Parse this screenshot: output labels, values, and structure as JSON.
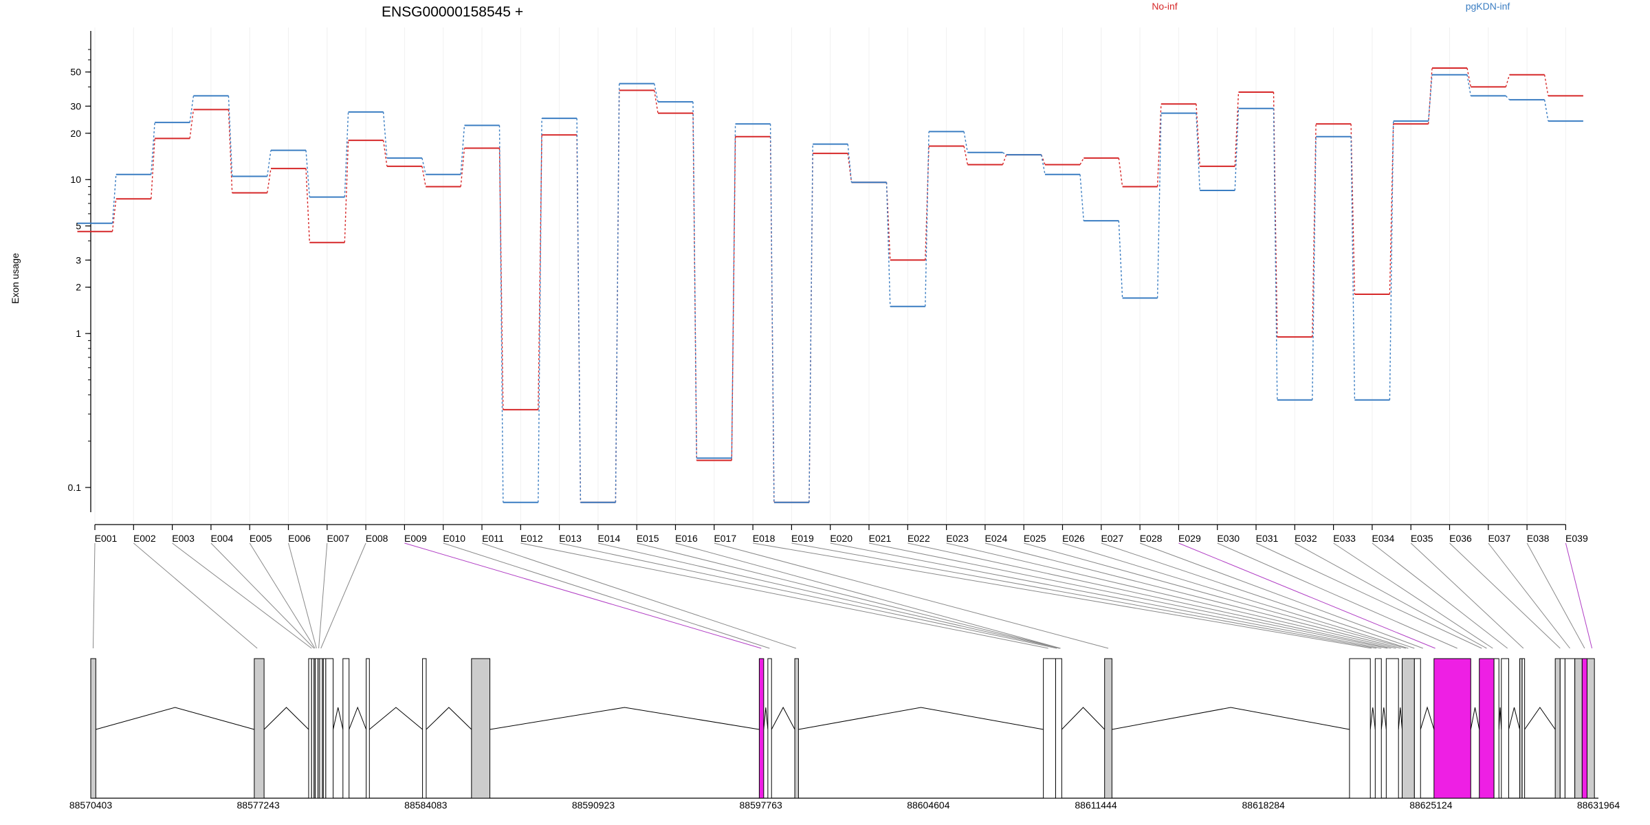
{
  "chart_data": {
    "type": "line",
    "title": "ENSG00000158545 +",
    "ylabel": "Exon usage",
    "y_scale": "log",
    "ylim": [
      0.075,
      70
    ],
    "y_ticks": [
      "0.1",
      "1",
      "2",
      "3",
      "5",
      "10",
      "20",
      "30",
      "50"
    ],
    "y_tick_values": [
      0.1,
      1,
      2,
      3,
      5,
      10,
      20,
      30,
      50
    ],
    "categories": [
      "E001",
      "E002",
      "E003",
      "E004",
      "E005",
      "E006",
      "E007",
      "E008",
      "E009",
      "E010",
      "E011",
      "E012",
      "E013",
      "E014",
      "E015",
      "E016",
      "E017",
      "E018",
      "E019",
      "E020",
      "E021",
      "E022",
      "E023",
      "E024",
      "E025",
      "E026",
      "E027",
      "E028",
      "E029",
      "E030",
      "E031",
      "E032",
      "E033",
      "E034",
      "E035",
      "E036",
      "E037",
      "E038",
      "E039"
    ],
    "legend_position": "top",
    "series": [
      {
        "name": "No-inf",
        "color": "#d62728",
        "values": [
          4.6,
          7.5,
          18.5,
          28.5,
          8.2,
          11.8,
          3.9,
          18.0,
          12.2,
          9.0,
          16.0,
          0.32,
          19.5,
          0.08,
          38.0,
          27.0,
          0.15,
          19.0,
          0.08,
          14.8,
          9.6,
          3.0,
          16.5,
          12.5,
          14.5,
          12.5,
          13.8,
          9.0,
          31.0,
          12.2,
          37.0,
          0.95,
          23.0,
          1.8,
          23.0,
          53.0,
          40.0,
          48.0,
          35.0
        ]
      },
      {
        "name": "pgKDN-inf",
        "color": "#3a7dc2",
        "values": [
          5.2,
          10.8,
          23.5,
          35.0,
          10.5,
          15.5,
          7.7,
          27.5,
          13.8,
          10.8,
          22.5,
          0.08,
          25.0,
          0.08,
          42.0,
          32.0,
          0.155,
          23.0,
          0.08,
          17.0,
          9.6,
          1.5,
          20.5,
          15.0,
          14.5,
          10.8,
          5.4,
          1.7,
          27.0,
          8.5,
          29.0,
          0.37,
          19.0,
          0.37,
          24.0,
          48.0,
          35.0,
          33.0,
          24.0
        ]
      }
    ],
    "gene_track": {
      "coordinate_labels": [
        "88570403",
        "88577243",
        "88584083",
        "88590923",
        "88597763",
        "88604604",
        "88611444",
        "88618284",
        "88625124",
        "88631964"
      ],
      "coordinate_values": [
        88570403,
        88577243,
        88584083,
        88590923,
        88597763,
        88604604,
        88611444,
        88618284,
        88625124,
        88631964
      ],
      "colors": {
        "exon": "#cccccc",
        "highlight": "#ee1fe4",
        "empty": "#ffffff"
      },
      "exons": [
        {
          "start": 88570403,
          "end": 88570610,
          "fill": "exon"
        },
        {
          "start": 88577080,
          "end": 88577480,
          "fill": "exon"
        },
        {
          "start": 88579300,
          "end": 88579420,
          "fill": "empty"
        },
        {
          "start": 88579420,
          "end": 88579520,
          "fill": "empty"
        },
        {
          "start": 88579520,
          "end": 88579570,
          "fill": "exon"
        },
        {
          "start": 88579570,
          "end": 88579680,
          "fill": "empty"
        },
        {
          "start": 88579680,
          "end": 88579750,
          "fill": "exon"
        },
        {
          "start": 88579750,
          "end": 88579860,
          "fill": "empty"
        },
        {
          "start": 88579860,
          "end": 88579900,
          "fill": "empty"
        },
        {
          "start": 88579900,
          "end": 88580000,
          "fill": "empty"
        },
        {
          "start": 88580000,
          "end": 88580300,
          "fill": "empty"
        },
        {
          "start": 88580700,
          "end": 88580950,
          "fill": "empty"
        },
        {
          "start": 88581650,
          "end": 88581780,
          "fill": "empty"
        },
        {
          "start": 88583950,
          "end": 88584100,
          "fill": "empty"
        },
        {
          "start": 88585950,
          "end": 88586700,
          "fill": "exon"
        },
        {
          "start": 88597700,
          "end": 88597880,
          "fill": "highlight"
        },
        {
          "start": 88598050,
          "end": 88598200,
          "fill": "empty"
        },
        {
          "start": 88599150,
          "end": 88599300,
          "fill": "exon"
        },
        {
          "start": 88609300,
          "end": 88609800,
          "fill": "empty"
        },
        {
          "start": 88609800,
          "end": 88610050,
          "fill": "empty"
        },
        {
          "start": 88611800,
          "end": 88612100,
          "fill": "exon"
        },
        {
          "start": 88621800,
          "end": 88622650,
          "fill": "empty"
        },
        {
          "start": 88622850,
          "end": 88623100,
          "fill": "empty"
        },
        {
          "start": 88623300,
          "end": 88623800,
          "fill": "empty"
        },
        {
          "start": 88623950,
          "end": 88624450,
          "fill": "exon"
        },
        {
          "start": 88624450,
          "end": 88624700,
          "fill": "empty"
        },
        {
          "start": 88625250,
          "end": 88626750,
          "fill": "highlight"
        },
        {
          "start": 88627100,
          "end": 88627700,
          "fill": "highlight"
        },
        {
          "start": 88627700,
          "end": 88627900,
          "fill": "empty"
        },
        {
          "start": 88628000,
          "end": 88628300,
          "fill": "empty"
        },
        {
          "start": 88628750,
          "end": 88628850,
          "fill": "exon"
        },
        {
          "start": 88628850,
          "end": 88628950,
          "fill": "empty"
        },
        {
          "start": 88630200,
          "end": 88630400,
          "fill": "exon"
        },
        {
          "start": 88630400,
          "end": 88630600,
          "fill": "empty"
        },
        {
          "start": 88630600,
          "end": 88631000,
          "fill": "empty"
        },
        {
          "start": 88631000,
          "end": 88631300,
          "fill": "exon"
        },
        {
          "start": 88631300,
          "end": 88631500,
          "fill": "highlight"
        },
        {
          "start": 88631500,
          "end": 88631800,
          "fill": "exon"
        }
      ],
      "connector_anchors": [
        88570500,
        88577200,
        88579420,
        88579520,
        88579560,
        88579620,
        88579710,
        88579800,
        88597780,
        88598120,
        88599200,
        88609500,
        88609850,
        88609950,
        88609980,
        88610000,
        88611950,
        88622700,
        88622900,
        88623100,
        88623350,
        88623500,
        88623700,
        88623900,
        88624100,
        88624200,
        88624450,
        88624800,
        88625300,
        88626200,
        88627200,
        88627400,
        88627650,
        88628250,
        88628900,
        88630400,
        88630800,
        88631400,
        88631700
      ],
      "highlight_connectors": [
        8,
        28,
        38
      ]
    }
  }
}
